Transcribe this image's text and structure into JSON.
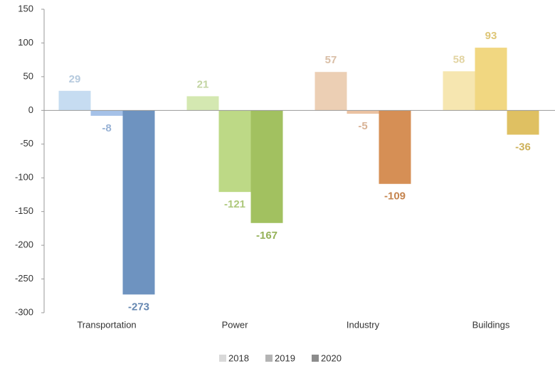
{
  "chart_data": {
    "type": "bar",
    "categories": [
      "Transportation",
      "Power",
      "Industry",
      "Buildings"
    ],
    "series": [
      {
        "name": "2018",
        "color": "#d9d9d9",
        "values": [
          29,
          21,
          57,
          58
        ],
        "bar_colors": [
          "#c6dcf1",
          "#d4e8b1",
          "#eccfb4",
          "#f6e6b0"
        ]
      },
      {
        "name": "2019",
        "color": "#b4b4b4",
        "values": [
          -8,
          -121,
          -5,
          93
        ],
        "bar_colors": [
          "#a5c1e8",
          "#bdd986",
          "#ebc2a2",
          "#f1d781"
        ]
      },
      {
        "name": "2020",
        "color": "#8c8c8c",
        "values": [
          -273,
          -167,
          -109,
          -36
        ],
        "bar_colors": [
          "#6e93c0",
          "#a2c160",
          "#d68f55",
          "#dfc062"
        ]
      }
    ],
    "ylim": [
      -300,
      150
    ],
    "yticks": [
      150,
      100,
      50,
      0,
      -50,
      -100,
      -150,
      -200,
      -250,
      -300
    ],
    "grid": false,
    "legend": "bottom"
  }
}
